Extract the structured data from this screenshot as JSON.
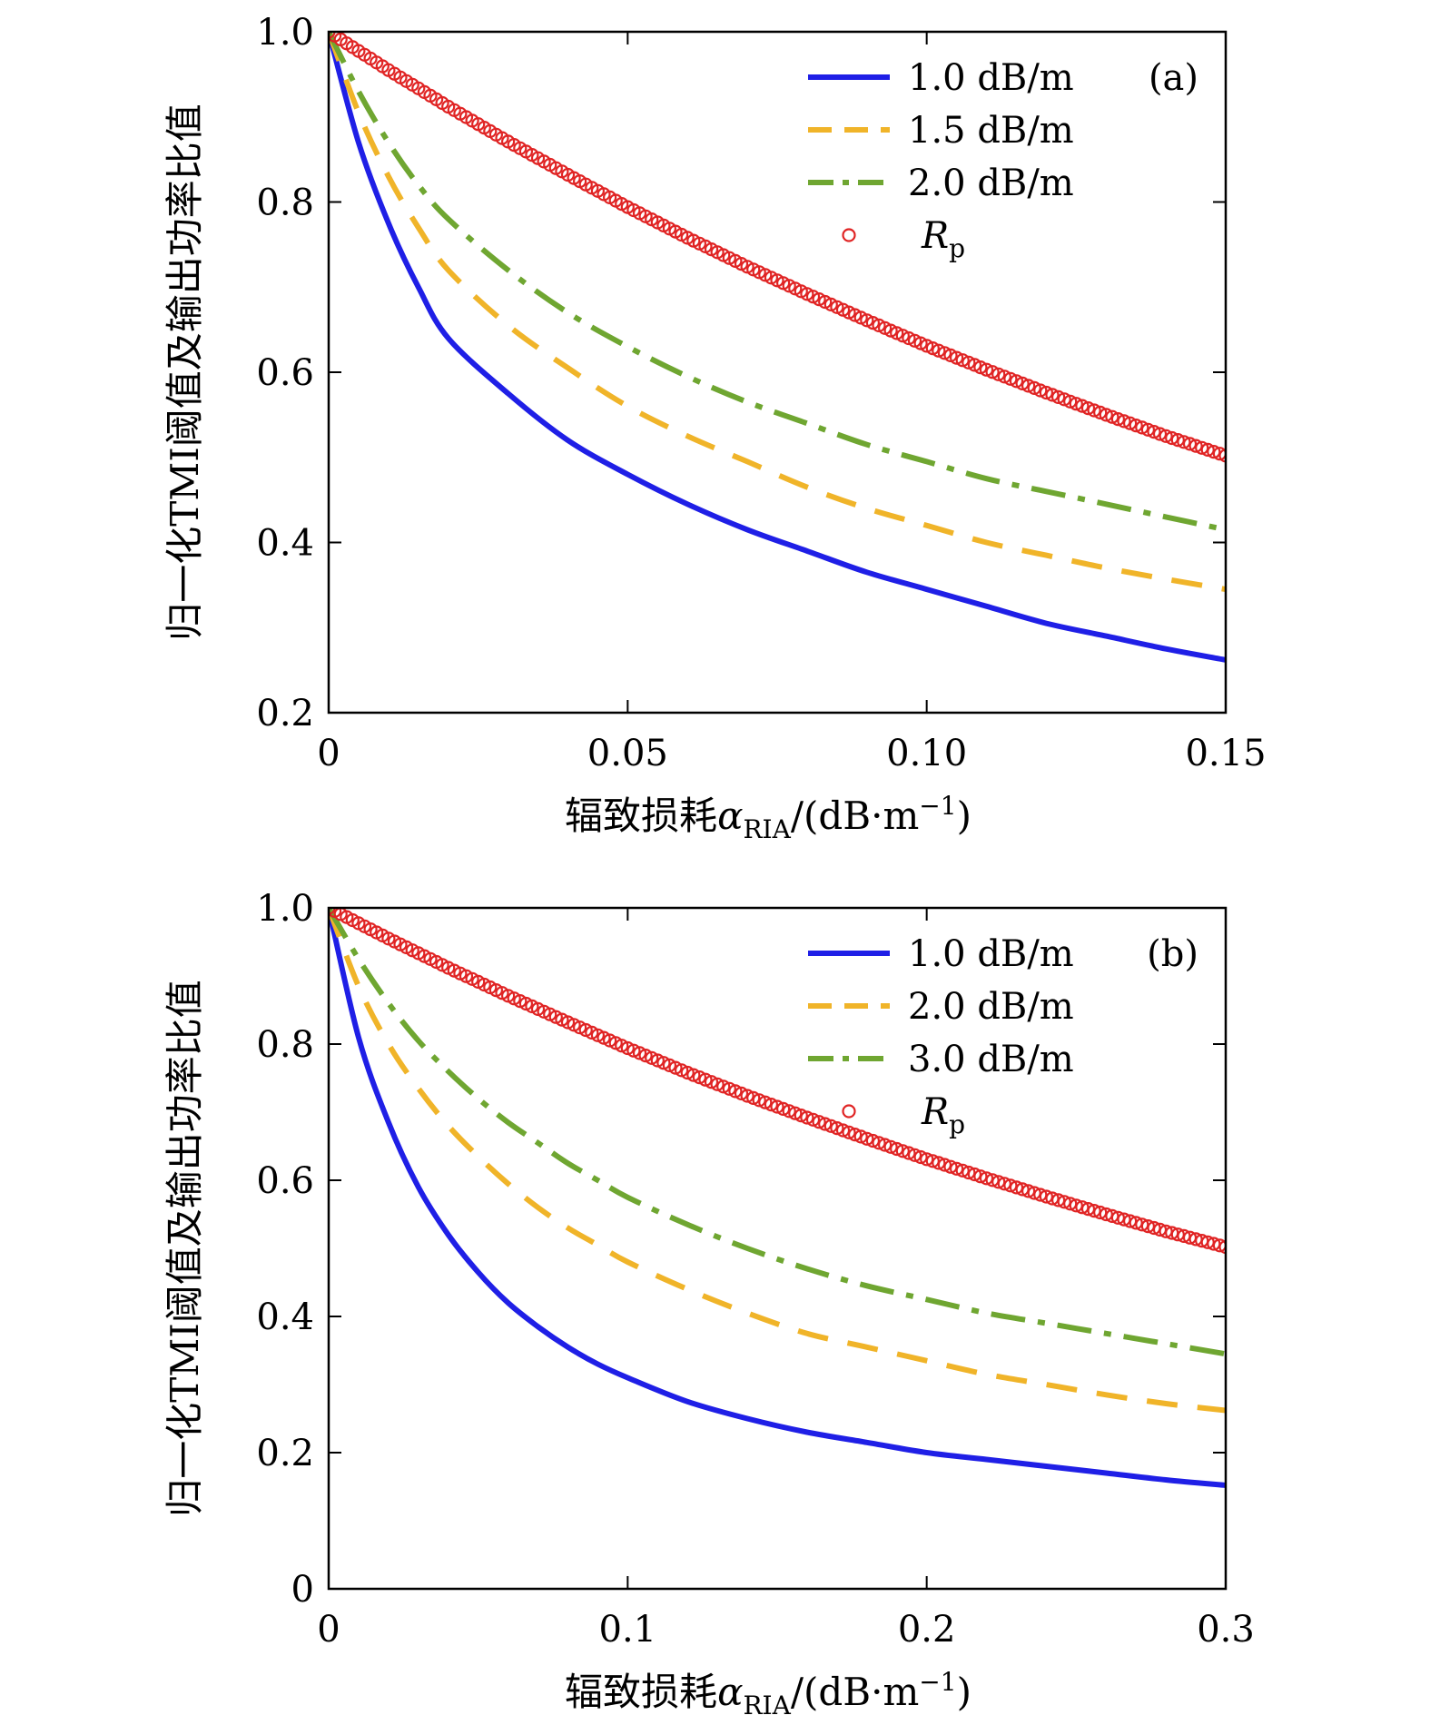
{
  "chart_data": [
    {
      "type": "line",
      "panel_label": "(a)",
      "ylabel": "归一化TMI阈值及输出功率比值",
      "xlabel": {
        "prefix": "辐致损耗",
        "symbol": "α",
        "subscript": "RIA",
        "unit_open": "/(dB·m",
        "unit_exp": "−1",
        "unit_close": ")"
      },
      "xlim": [
        0,
        0.15
      ],
      "ylim": [
        0.2,
        1.0
      ],
      "xticks": [
        0,
        0.05,
        0.1,
        0.15
      ],
      "xtick_labels": [
        "0",
        "0.05",
        "0.10",
        "0.15"
      ],
      "yticks": [
        0.2,
        0.4,
        0.6,
        0.8,
        1.0
      ],
      "ytick_labels": [
        "0.2",
        "0.4",
        "0.6",
        "0.8",
        "1.0"
      ],
      "legend_position": "top-right",
      "series": [
        {
          "name": "1.0 dB/m",
          "style": "solid",
          "color": "#1f1fe6",
          "a": 1.0,
          "x": [
            0,
            0.005,
            0.01,
            0.015,
            0.02,
            0.03,
            0.04,
            0.05,
            0.06,
            0.07,
            0.08,
            0.09,
            0.1,
            0.11,
            0.12,
            0.13,
            0.14,
            0.15
          ],
          "y": [
            1.0,
            0.87,
            0.775,
            0.7,
            0.64,
            0.575,
            0.52,
            0.48,
            0.445,
            0.415,
            0.39,
            0.365,
            0.345,
            0.325,
            0.305,
            0.29,
            0.275,
            0.262
          ]
        },
        {
          "name": "1.5 dB/m",
          "style": "dashed",
          "color": "#f0b429",
          "a": 1.5,
          "x": [
            0,
            0.005,
            0.01,
            0.015,
            0.02,
            0.03,
            0.04,
            0.05,
            0.06,
            0.07,
            0.08,
            0.09,
            0.1,
            0.11,
            0.12,
            0.13,
            0.14,
            0.15
          ],
          "y": [
            1.0,
            0.905,
            0.83,
            0.77,
            0.72,
            0.655,
            0.605,
            0.56,
            0.525,
            0.495,
            0.465,
            0.44,
            0.42,
            0.4,
            0.385,
            0.37,
            0.357,
            0.345
          ]
        },
        {
          "name": "2.0 dB/m",
          "style": "dashdot",
          "color": "#6fa631",
          "a": 2.0,
          "x": [
            0,
            0.005,
            0.01,
            0.015,
            0.02,
            0.03,
            0.04,
            0.05,
            0.06,
            0.07,
            0.08,
            0.09,
            0.1,
            0.11,
            0.12,
            0.13,
            0.14,
            0.15
          ],
          "y": [
            1.0,
            0.93,
            0.87,
            0.82,
            0.78,
            0.72,
            0.67,
            0.63,
            0.595,
            0.565,
            0.54,
            0.515,
            0.495,
            0.475,
            0.46,
            0.445,
            0.43,
            0.415
          ]
        },
        {
          "name": "R",
          "name_subscript": "p",
          "style": "markers",
          "color": "#e02424",
          "x": [
            0,
            0.01,
            0.02,
            0.03,
            0.04,
            0.05,
            0.06,
            0.07,
            0.08,
            0.09,
            0.1,
            0.11,
            0.12,
            0.13,
            0.14,
            0.15
          ],
          "y": [
            1.0,
            0.955,
            0.912,
            0.871,
            0.832,
            0.794,
            0.758,
            0.724,
            0.692,
            0.661,
            0.631,
            0.603,
            0.576,
            0.55,
            0.525,
            0.502
          ]
        }
      ]
    },
    {
      "type": "line",
      "panel_label": "(b)",
      "ylabel": "归一化TMI阈值及输出功率比值",
      "xlabel": {
        "prefix": "辐致损耗",
        "symbol": "α",
        "subscript": "RIA",
        "unit_open": "/(dB·m",
        "unit_exp": "−1",
        "unit_close": ")"
      },
      "xlim": [
        0,
        0.3
      ],
      "ylim": [
        0,
        1.0
      ],
      "xticks": [
        0,
        0.1,
        0.2,
        0.3
      ],
      "xtick_labels": [
        "0",
        "0.1",
        "0.2",
        "0.3"
      ],
      "yticks": [
        0,
        0.2,
        0.4,
        0.6,
        0.8,
        1.0
      ],
      "ytick_labels": [
        "0",
        "0.2",
        "0.4",
        "0.6",
        "0.8",
        "1.0"
      ],
      "legend_position": "top-right",
      "series": [
        {
          "name": "1.0 dB/m",
          "style": "solid",
          "color": "#1f1fe6",
          "x": [
            0,
            0.01,
            0.02,
            0.03,
            0.04,
            0.05,
            0.06,
            0.07,
            0.08,
            0.09,
            0.1,
            0.12,
            0.14,
            0.16,
            0.18,
            0.2,
            0.22,
            0.24,
            0.26,
            0.28,
            0.3
          ],
          "y": [
            1.0,
            0.81,
            0.685,
            0.59,
            0.52,
            0.465,
            0.42,
            0.385,
            0.355,
            0.33,
            0.31,
            0.275,
            0.25,
            0.23,
            0.215,
            0.2,
            0.19,
            0.18,
            0.17,
            0.16,
            0.152
          ]
        },
        {
          "name": "2.0 dB/m",
          "style": "dashed",
          "color": "#f0b429",
          "x": [
            0,
            0.01,
            0.02,
            0.03,
            0.04,
            0.05,
            0.06,
            0.07,
            0.08,
            0.09,
            0.1,
            0.12,
            0.14,
            0.16,
            0.18,
            0.2,
            0.22,
            0.24,
            0.26,
            0.28,
            0.3
          ],
          "y": [
            1.0,
            0.885,
            0.8,
            0.735,
            0.68,
            0.635,
            0.595,
            0.56,
            0.53,
            0.505,
            0.48,
            0.44,
            0.405,
            0.375,
            0.355,
            0.335,
            0.315,
            0.3,
            0.285,
            0.272,
            0.262
          ]
        },
        {
          "name": "3.0 dB/m",
          "style": "dashdot",
          "color": "#6fa631",
          "x": [
            0,
            0.01,
            0.02,
            0.03,
            0.04,
            0.05,
            0.06,
            0.07,
            0.08,
            0.09,
            0.1,
            0.12,
            0.14,
            0.16,
            0.18,
            0.2,
            0.22,
            0.24,
            0.26,
            0.28,
            0.3
          ],
          "y": [
            1.0,
            0.925,
            0.86,
            0.805,
            0.76,
            0.72,
            0.685,
            0.655,
            0.625,
            0.6,
            0.575,
            0.535,
            0.5,
            0.47,
            0.445,
            0.425,
            0.405,
            0.39,
            0.375,
            0.36,
            0.345
          ]
        },
        {
          "name": "R",
          "name_subscript": "p",
          "style": "markers",
          "color": "#e02424",
          "x": [
            0,
            0.02,
            0.04,
            0.06,
            0.08,
            0.1,
            0.12,
            0.14,
            0.16,
            0.18,
            0.2,
            0.22,
            0.24,
            0.26,
            0.28,
            0.3
          ],
          "y": [
            1.0,
            0.955,
            0.912,
            0.871,
            0.832,
            0.794,
            0.758,
            0.724,
            0.692,
            0.661,
            0.631,
            0.603,
            0.576,
            0.55,
            0.525,
            0.502
          ]
        }
      ]
    }
  ]
}
